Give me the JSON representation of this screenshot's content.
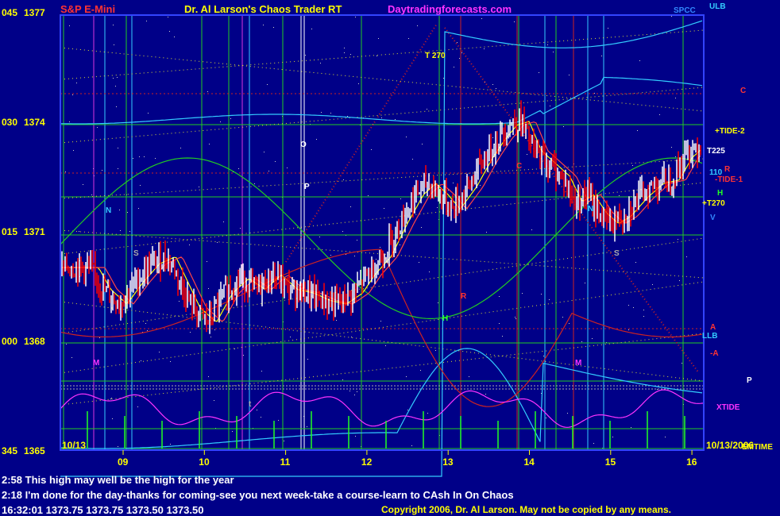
{
  "header": {
    "instrument": "S&P E-Mini",
    "product": "Dr. Al Larson's Chaos Trader RT",
    "website": "Daytradingforecasts.com",
    "corner_label": "SPCC"
  },
  "messages": [
    "2:58 This high may well be the high for the year",
    "2:18 I'm done for the day-thanks for coming-see you next week-take a course-learn to CAsh In On Chaos"
  ],
  "status_line": "16:32:01  1373.75 1373.75 1373.50 1373.50",
  "copyright": "Copyright 2006, Dr. Al Larson. May not be copied by any means.",
  "dates": {
    "start": "10/13",
    "end": "10/13/2006"
  },
  "colors": {
    "background": "#000088",
    "axis_text": "#ffff00",
    "header_red": "#ff3333",
    "header_magenta": "#ff33ff",
    "up_bar": "#ffffff",
    "down_bar": "#ff0000",
    "grid_green": "#22cc22"
  },
  "chart_data": {
    "type": "line",
    "x_ticks": [
      "09",
      "10",
      "11",
      "12",
      "13",
      "14",
      "15",
      "16"
    ],
    "y_ticks": [
      {
        "code": "045",
        "price": 1377
      },
      {
        "code": "030",
        "price": 1374
      },
      {
        "code": "015",
        "price": 1371
      },
      {
        "code": "000",
        "price": 1368
      },
      {
        "code": "345",
        "price": 1365
      }
    ],
    "ylim": [
      1365,
      1377
    ],
    "xlim": [
      8.6,
      16.2
    ],
    "price_keypoints": [
      [
        8.6,
        1370.0
      ],
      [
        8.75,
        1369.4
      ],
      [
        8.95,
        1369.0
      ],
      [
        9.15,
        1369.6
      ],
      [
        9.35,
        1370.1
      ],
      [
        9.55,
        1370.3
      ],
      [
        9.7,
        1369.6
      ],
      [
        9.85,
        1368.9
      ],
      [
        10.05,
        1368.5
      ],
      [
        10.25,
        1369.3
      ],
      [
        10.45,
        1369.7
      ],
      [
        10.65,
        1369.4
      ],
      [
        10.85,
        1369.8
      ],
      [
        11.05,
        1369.4
      ],
      [
        11.25,
        1369.3
      ],
      [
        11.45,
        1369.1
      ],
      [
        11.65,
        1369.0
      ],
      [
        11.85,
        1369.3
      ],
      [
        12.0,
        1369.8
      ],
      [
        12.2,
        1370.3
      ],
      [
        12.4,
        1371.2
      ],
      [
        12.6,
        1372.0
      ],
      [
        12.75,
        1372.3
      ],
      [
        12.9,
        1372.0
      ],
      [
        13.05,
        1371.6
      ],
      [
        13.25,
        1372.2
      ],
      [
        13.45,
        1373.0
      ],
      [
        13.6,
        1373.5
      ],
      [
        13.75,
        1373.9
      ],
      [
        13.9,
        1374.0
      ],
      [
        14.05,
        1373.2
      ],
      [
        14.25,
        1372.8
      ],
      [
        14.4,
        1372.5
      ],
      [
        14.55,
        1371.8
      ],
      [
        14.7,
        1372.0
      ],
      [
        14.85,
        1371.5
      ],
      [
        15.0,
        1371.2
      ],
      [
        15.15,
        1371.4
      ],
      [
        15.35,
        1371.9
      ],
      [
        15.55,
        1372.3
      ],
      [
        15.75,
        1372.4
      ],
      [
        15.9,
        1373.0
      ],
      [
        16.05,
        1373.3
      ],
      [
        16.2,
        1373.5
      ]
    ],
    "axis_labels": {
      "right": [
        "ULB",
        "+TIDE-2",
        "T225",
        "110",
        "R",
        "-TIDE-1",
        "H",
        "+T270",
        "V",
        "LLB",
        "A",
        "-A",
        "XTIDE",
        "EMTIME"
      ],
      "plot": [
        "T 270",
        "C",
        "C",
        "N",
        "N",
        "S",
        "S",
        "P",
        "O",
        "R",
        "H",
        "M",
        "M",
        "P",
        "t"
      ]
    }
  }
}
